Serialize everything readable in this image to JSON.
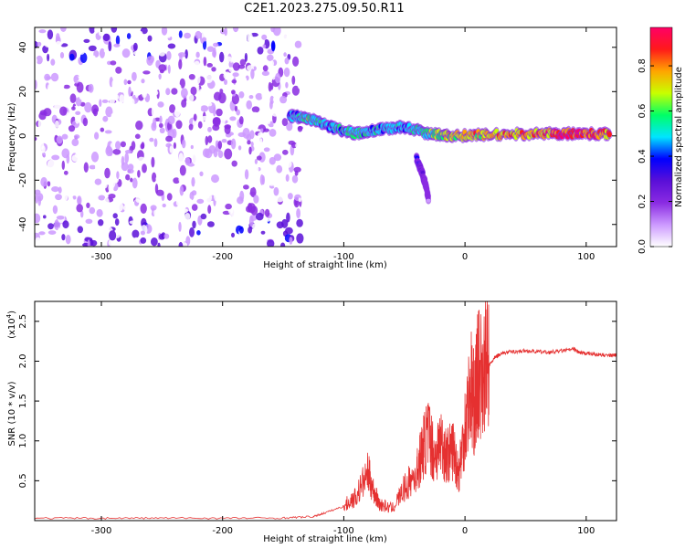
{
  "figure_title": "C2E1.2023.275.09.50.R11",
  "colors": {
    "snr_line": "#e53030",
    "colormap": [
      "#ffffff",
      "#cc99ff",
      "#8a2be2",
      "#5a0fd8",
      "#0000ff",
      "#00e5ff",
      "#00ff66",
      "#c8ff00",
      "#ffa500",
      "#ff1a1a",
      "#ff0066"
    ]
  },
  "chart_data": [
    {
      "type": "heatmap",
      "title": "C2E1.2023.275.09.50.R11",
      "xlabel": "Height of straight line (km)",
      "ylabel": "Frequency (Hz)",
      "xlim": [
        -355,
        125
      ],
      "ylim": [
        -50,
        49
      ],
      "x_ticks": [
        -300,
        -200,
        -100,
        0,
        100
      ],
      "x_tick_labels": [
        "-300",
        "-200",
        "-100",
        "0",
        "100"
      ],
      "y_ticks": [
        -40,
        -20,
        0,
        20,
        40
      ],
      "y_tick_labels": [
        "-40",
        "-20",
        "0",
        "20",
        "40"
      ],
      "colorbar": {
        "label": "Normalized spectral amplitude",
        "range": [
          0,
          0.97
        ],
        "ticks": [
          0.0,
          0.2,
          0.4,
          0.6,
          0.8
        ],
        "tick_labels": [
          "0.0",
          "0.2",
          "0.4",
          "0.6",
          "0.8"
        ]
      },
      "regions": [
        {
          "name": "noise",
          "x_range": [
            -355,
            -135
          ],
          "freq_range": [
            -50,
            49
          ],
          "amplitude": 0.15
        },
        {
          "name": "signal-trace",
          "points": [
            {
              "x": -145,
              "freq": 9,
              "amplitude": 0.45
            },
            {
              "x": -130,
              "freq": 8,
              "amplitude": 0.6
            },
            {
              "x": -110,
              "freq": 4,
              "amplitude": 0.5
            },
            {
              "x": -90,
              "freq": 1,
              "amplitude": 0.55
            },
            {
              "x": -70,
              "freq": 3,
              "amplitude": 0.5
            },
            {
              "x": -50,
              "freq": 4,
              "amplitude": 0.5
            },
            {
              "x": -30,
              "freq": 1,
              "amplitude": 0.6
            },
            {
              "x": -10,
              "freq": 0,
              "amplitude": 0.7
            },
            {
              "x": 20,
              "freq": 0.5,
              "amplitude": 0.8
            },
            {
              "x": 60,
              "freq": 1,
              "amplitude": 0.8
            },
            {
              "x": 90,
              "freq": 1,
              "amplitude": 0.95
            },
            {
              "x": 120,
              "freq": 1,
              "amplitude": 0.8
            }
          ]
        },
        {
          "name": "descending-branch",
          "points": [
            {
              "x": -40,
              "freq": -10,
              "amplitude": 0.4
            },
            {
              "x": -35,
              "freq": -17,
              "amplitude": 0.3
            },
            {
              "x": -30,
              "freq": -28,
              "amplitude": 0.15
            }
          ]
        }
      ]
    },
    {
      "type": "line",
      "xlabel": "Height of straight line (km)",
      "ylabel": "SNR (10 * v/v)",
      "y_multiplier_label": "(x10",
      "y_multiplier_exp": "4",
      "xlim": [
        -355,
        125
      ],
      "ylim": [
        0,
        27500
      ],
      "x_ticks": [
        -300,
        -200,
        -100,
        0,
        100
      ],
      "x_tick_labels": [
        "-300",
        "-200",
        "-100",
        "0",
        "100"
      ],
      "y_ticks": [
        5000,
        10000,
        15000,
        20000,
        25000
      ],
      "y_tick_labels": [
        "0.5",
        "1.0",
        "1.5",
        "2.0",
        "2.5"
      ],
      "series": [
        {
          "x": [
            -355,
            -300,
            -250,
            -200,
            -150,
            -125,
            -115,
            -100,
            -90,
            -80,
            -75,
            -70,
            -60,
            -50,
            -40,
            -35,
            -30,
            -25,
            -20,
            -15,
            -10,
            -5,
            0,
            5,
            8,
            10,
            15,
            20,
            25,
            30,
            40,
            50,
            60,
            70,
            80,
            90,
            95,
            100,
            110,
            120,
            125
          ],
          "y": [
            300,
            300,
            320,
            300,
            330,
            500,
            1000,
            1800,
            3000,
            6000,
            3500,
            2000,
            1500,
            4000,
            6000,
            9000,
            11000,
            8000,
            10000,
            8000,
            9000,
            6000,
            12000,
            17000,
            14000,
            18000,
            19000,
            19500,
            20500,
            21000,
            21200,
            21300,
            21200,
            21100,
            21300,
            21500,
            21000,
            21000,
            20800,
            20700,
            20800
          ]
        }
      ]
    }
  ]
}
